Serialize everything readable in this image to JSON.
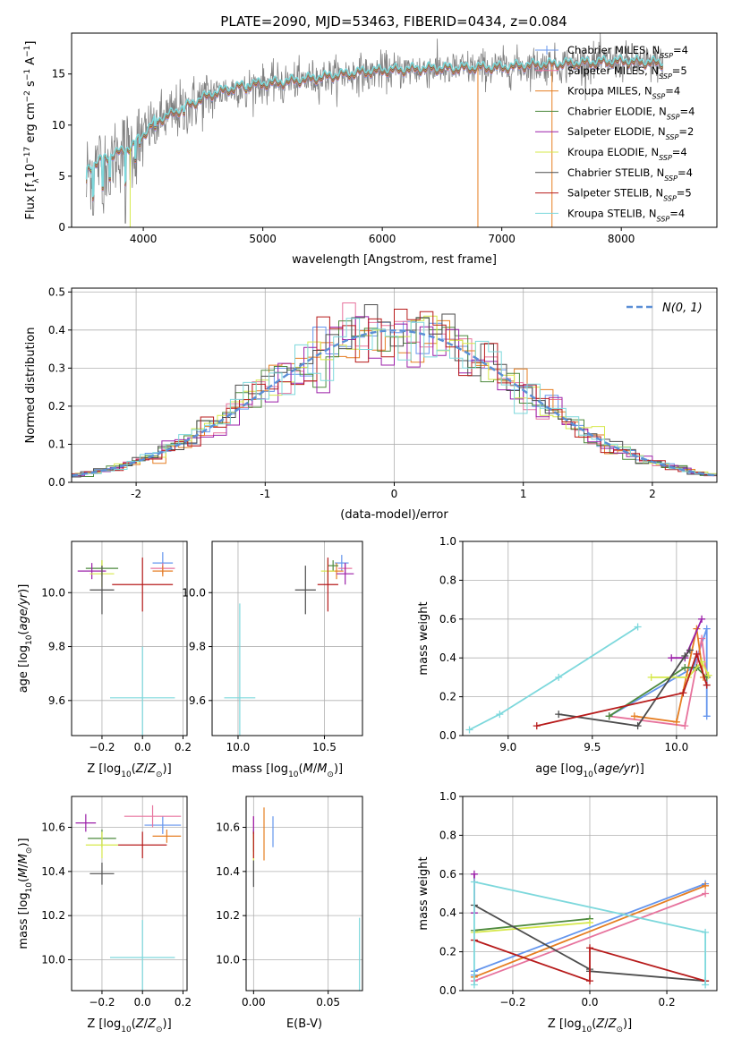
{
  "title": "PLATE=2090, MJD=53463, FIBERID=0434, z=0.084",
  "colors": {
    "Chabrier MILES": "#6495ed",
    "Salpeter MILES": "#e7739d",
    "Kroupa MILES": "#e67e22",
    "Chabrier ELODIE": "#4e8a3e",
    "Salpeter ELODIE": "#9b1fa8",
    "Kroupa ELODIE": "#d6e84a",
    "Chabrier STELIB": "#4d4d4d",
    "Salpeter STELIB": "#b71b1b",
    "Kroupa STELIB": "#7dd8dc",
    "spectrum": "#808080",
    "normal": "#5b8fd6"
  },
  "chart_data": [
    {
      "id": "spectrum",
      "type": "line",
      "xlabel": "wavelength [Angstrom, rest frame]",
      "ylabel": "Flux [f_λ 10^-17 erg cm^-2 s^-1 A^-1]",
      "ylabel_parts": [
        "Flux [f",
        "λ",
        "10",
        "−17",
        " erg cm",
        "−2",
        " s",
        "−1",
        " A",
        "−1",
        "]"
      ],
      "xlim": [
        3400,
        8800
      ],
      "ylim": [
        0,
        19
      ],
      "xticks": [
        4000,
        5000,
        6000,
        7000,
        8000
      ],
      "yticks": [
        0,
        5,
        10,
        15
      ],
      "grid": false,
      "legend_placement": "right",
      "legend": [
        {
          "name": "Chabrier MILES",
          "n": "4"
        },
        {
          "name": "Salpeter MILES",
          "n": "5"
        },
        {
          "name": "Kroupa MILES",
          "n": "4"
        },
        {
          "name": "Chabrier ELODIE",
          "n": "4"
        },
        {
          "name": "Salpeter ELODIE",
          "n": "2"
        },
        {
          "name": "Kroupa ELODIE",
          "n": "4"
        },
        {
          "name": "Chabrier STELIB",
          "n": "4"
        },
        {
          "name": "Salpeter STELIB",
          "n": "5"
        },
        {
          "name": "Kroupa STELIB",
          "n": "4"
        }
      ],
      "continuum": [
        [
          3520,
          5.5
        ],
        [
          3600,
          6.2
        ],
        [
          3700,
          6.8
        ],
        [
          3800,
          7.3
        ],
        [
          3900,
          7.8
        ],
        [
          4000,
          9.0
        ],
        [
          4100,
          10.3
        ],
        [
          4200,
          10.8
        ],
        [
          4300,
          11.4
        ],
        [
          4400,
          12.0
        ],
        [
          4500,
          12.6
        ],
        [
          4600,
          13.1
        ],
        [
          4700,
          13.4
        ],
        [
          4800,
          13.7
        ],
        [
          4900,
          13.9
        ],
        [
          5000,
          14.0
        ],
        [
          5200,
          14.2
        ],
        [
          5400,
          14.5
        ],
        [
          5600,
          14.8
        ],
        [
          5800,
          15.1
        ],
        [
          6000,
          15.3
        ],
        [
          6200,
          15.4
        ],
        [
          6400,
          15.5
        ],
        [
          6600,
          15.5
        ],
        [
          6800,
          15.6
        ],
        [
          7000,
          15.6
        ],
        [
          7200,
          15.8
        ],
        [
          7400,
          15.9
        ],
        [
          7600,
          16.0
        ],
        [
          7800,
          16.1
        ],
        [
          8000,
          16.2
        ],
        [
          8200,
          16.1
        ],
        [
          8350,
          16.0
        ]
      ],
      "dips": [
        [
          3520,
          3.0
        ],
        [
          3580,
          1.2
        ],
        [
          3660,
          2.3
        ],
        [
          3720,
          3.2
        ],
        [
          3850,
          0.4
        ],
        [
          3935,
          5.0
        ],
        [
          3970,
          6.5
        ],
        [
          4100,
          8.2
        ],
        [
          4340,
          9.6
        ],
        [
          4860,
          11.8
        ],
        [
          5170,
          12.2
        ],
        [
          5270,
          12.8
        ],
        [
          5890,
          13.6
        ],
        [
          6560,
          14.3
        ]
      ],
      "drops": [
        {
          "series": "Kroupa ELODIE",
          "x": 3890
        },
        {
          "series": "Kroupa MILES",
          "x": 6800
        },
        {
          "series": "Kroupa MILES",
          "x": 7420
        }
      ]
    },
    {
      "id": "residuals",
      "type": "histogram",
      "xlabel": "(data-model)/error",
      "ylabel": "Normed distribution",
      "xlim": [
        -2.5,
        2.5
      ],
      "ylim": [
        0,
        0.51
      ],
      "xticks": [
        -2,
        -1,
        0,
        1,
        2
      ],
      "yticks": [
        0.0,
        0.1,
        0.2,
        0.3,
        0.4,
        0.5
      ],
      "grid": true,
      "bin_width": 0.1,
      "normal_label": "N(0, 1)",
      "notable_bins": [
        {
          "series": "Salpeter ELODIE",
          "x": -0.2,
          "value": 0.48
        },
        {
          "series": "Salpeter MILES",
          "x": -0.4,
          "value": 0.46
        },
        {
          "series": "Kroupa ELODIE",
          "x": 0.75,
          "value": 0.43
        },
        {
          "series": "Kroupa STELIB",
          "x": -0.05,
          "value": 0.47
        }
      ]
    },
    {
      "id": "age-vs-Z",
      "type": "scatter",
      "xlabel": "Z [log10(Z/Zsun)]",
      "ylabel": "age [log10(age/yr)]",
      "xlim": [
        -0.35,
        0.22
      ],
      "ylim": [
        9.47,
        10.19
      ],
      "xticks": [
        -0.2,
        0.0,
        0.2
      ],
      "xticklabels": [
        "−0.2",
        "0.0",
        "0.2"
      ],
      "yticks": [
        9.6,
        9.8,
        10.0
      ],
      "grid": true,
      "points": [
        {
          "series": "Chabrier MILES",
          "x": 0.1,
          "y": 10.11,
          "xerr": 0.05,
          "yerr": 0.04
        },
        {
          "series": "Salpeter MILES",
          "x": 0.1,
          "y": 10.09,
          "xerr": 0.06,
          "yerr": 0.02
        },
        {
          "series": "Kroupa MILES",
          "x": 0.1,
          "y": 10.08,
          "xerr": 0.05,
          "yerr": 0.02
        },
        {
          "series": "Chabrier ELODIE",
          "x": -0.2,
          "y": 10.09,
          "xerr": 0.08,
          "yerr": 0.03
        },
        {
          "series": "Salpeter ELODIE",
          "x": -0.25,
          "y": 10.08,
          "xerr": 0.07,
          "yerr": 0.03
        },
        {
          "series": "Kroupa ELODIE",
          "x": -0.2,
          "y": 10.07,
          "xerr": 0.06,
          "yerr": 0.05
        },
        {
          "series": "Chabrier STELIB",
          "x": -0.2,
          "y": 10.01,
          "xerr": 0.06,
          "yerr": 0.09
        },
        {
          "series": "Salpeter STELIB",
          "x": 0.0,
          "y": 10.03,
          "xerr": 0.15,
          "yerr": 0.1
        },
        {
          "series": "Kroupa STELIB",
          "x": 0.0,
          "y": 9.61,
          "xerr": 0.16,
          "yerr": 0.19
        }
      ]
    },
    {
      "id": "age-vs-mass",
      "type": "scatter",
      "xlabel": "mass [log10(M/Msun)]",
      "ylabel": "",
      "xlim": [
        9.85,
        10.72
      ],
      "ylim": [
        9.47,
        10.19
      ],
      "xticks": [
        10.0,
        10.5
      ],
      "xticklabels": [
        "10.0",
        "10.5"
      ],
      "yticks": [
        9.6,
        9.8,
        10.0
      ],
      "grid": true,
      "points": [
        {
          "series": "Chabrier MILES",
          "x": 10.6,
          "y": 10.11,
          "xerr": 0.04,
          "yerr": 0.03
        },
        {
          "series": "Salpeter MILES",
          "x": 10.62,
          "y": 10.09,
          "xerr": 0.04,
          "yerr": 0.02
        },
        {
          "series": "Kroupa MILES",
          "x": 10.57,
          "y": 10.08,
          "xerr": 0.04,
          "yerr": 0.03
        },
        {
          "series": "Chabrier ELODIE",
          "x": 10.55,
          "y": 10.1,
          "xerr": 0.03,
          "yerr": 0.02
        },
        {
          "series": "Salpeter ELODIE",
          "x": 10.62,
          "y": 10.07,
          "xerr": 0.05,
          "yerr": 0.04
        },
        {
          "series": "Kroupa ELODIE",
          "x": 10.52,
          "y": 10.08,
          "xerr": 0.04,
          "yerr": 0.04
        },
        {
          "series": "Chabrier STELIB",
          "x": 10.39,
          "y": 10.01,
          "xerr": 0.06,
          "yerr": 0.09
        },
        {
          "series": "Salpeter STELIB",
          "x": 10.52,
          "y": 10.03,
          "xerr": 0.06,
          "yerr": 0.1
        },
        {
          "series": "Kroupa STELIB",
          "x": 10.01,
          "y": 9.61,
          "xerr": 0.09,
          "yerr": 0.35
        }
      ]
    },
    {
      "id": "weight-vs-age",
      "type": "line",
      "xlabel": "age [log10(age/yr)]",
      "ylabel": "mass weight",
      "xlim": [
        8.73,
        10.24
      ],
      "ylim": [
        0,
        1
      ],
      "xticks": [
        9.0,
        9.5,
        10.0
      ],
      "xticklabels": [
        "9.0",
        "9.5",
        "10.0"
      ],
      "yticks": [
        0.0,
        0.2,
        0.4,
        0.6,
        0.8,
        1.0
      ],
      "grid": true,
      "series": [
        {
          "name": "Chabrier MILES",
          "x": [
            9.6,
            10.1,
            10.18,
            10.18
          ],
          "y": [
            0.1,
            0.35,
            0.55,
            0.1
          ]
        },
        {
          "name": "Salpeter MILES",
          "x": [
            9.6,
            10.05,
            10.15,
            10.18
          ],
          "y": [
            0.1,
            0.05,
            0.5,
            0.3
          ]
        },
        {
          "name": "Kroupa MILES",
          "x": [
            9.75,
            10.0,
            10.12,
            10.16
          ],
          "y": [
            0.1,
            0.07,
            0.55,
            0.3
          ]
        },
        {
          "name": "Chabrier ELODIE",
          "x": [
            9.6,
            10.05,
            10.12,
            10.18
          ],
          "y": [
            0.1,
            0.35,
            0.35,
            0.3
          ]
        },
        {
          "name": "Salpeter ELODIE",
          "x": [
            9.97,
            10.05,
            10.15
          ],
          "y": [
            0.4,
            0.4,
            0.6
          ]
        },
        {
          "name": "Kroupa ELODIE",
          "x": [
            9.85,
            10.07,
            10.15,
            10.19
          ],
          "y": [
            0.3,
            0.3,
            0.38,
            0.31
          ]
        },
        {
          "name": "Chabrier STELIB",
          "x": [
            9.3,
            9.77,
            10.05,
            10.08
          ],
          "y": [
            0.11,
            0.05,
            0.41,
            0.44
          ]
        },
        {
          "name": "Salpeter STELIB",
          "x": [
            9.17,
            10.04,
            10.12,
            10.18
          ],
          "y": [
            0.05,
            0.22,
            0.42,
            0.26
          ]
        },
        {
          "name": "Kroupa STELIB",
          "x": [
            8.77,
            8.95,
            9.3,
            9.77
          ],
          "y": [
            0.03,
            0.11,
            0.3,
            0.56
          ]
        }
      ]
    },
    {
      "id": "mass-vs-Z",
      "type": "scatter",
      "xlabel": "Z [log10(Z/Zsun)]",
      "ylabel": "mass [log10(M/Msun)]",
      "xlim": [
        -0.35,
        0.22
      ],
      "ylim": [
        9.86,
        10.74
      ],
      "xticks": [
        -0.2,
        0.0,
        0.2
      ],
      "xticklabels": [
        "−0.2",
        "0.0",
        "0.2"
      ],
      "yticks": [
        10.0,
        10.2,
        10.4,
        10.6
      ],
      "grid": true,
      "points": [
        {
          "series": "Chabrier MILES",
          "x": 0.1,
          "y": 10.61,
          "xerr": 0.09,
          "yerr": 0.04
        },
        {
          "series": "Salpeter MILES",
          "x": 0.05,
          "y": 10.65,
          "xerr": 0.14,
          "yerr": 0.05
        },
        {
          "series": "Kroupa MILES",
          "x": 0.12,
          "y": 10.56,
          "xerr": 0.07,
          "yerr": 0.03
        },
        {
          "series": "Chabrier ELODIE",
          "x": -0.2,
          "y": 10.55,
          "xerr": 0.07,
          "yerr": 0.04
        },
        {
          "series": "Salpeter ELODIE",
          "x": -0.28,
          "y": 10.62,
          "xerr": 0.05,
          "yerr": 0.04
        },
        {
          "series": "Kroupa ELODIE",
          "x": -0.2,
          "y": 10.52,
          "xerr": 0.08,
          "yerr": 0.06
        },
        {
          "series": "Chabrier STELIB",
          "x": -0.2,
          "y": 10.39,
          "xerr": 0.06,
          "yerr": 0.05
        },
        {
          "series": "Salpeter STELIB",
          "x": 0.0,
          "y": 10.52,
          "xerr": 0.12,
          "yerr": 0.06
        },
        {
          "series": "Kroupa STELIB",
          "x": 0.0,
          "y": 10.01,
          "xerr": 0.16,
          "yerr": 0.17
        }
      ]
    },
    {
      "id": "mass-vs-EBV",
      "type": "scatter",
      "xlabel": "E(B-V)",
      "ylabel": "",
      "xlim": [
        -0.005,
        0.073
      ],
      "ylim": [
        9.86,
        10.74
      ],
      "xticks": [
        0.0,
        0.05
      ],
      "xticklabels": [
        "0.00",
        "0.05"
      ],
      "yticks": [
        10.0,
        10.2,
        10.4,
        10.6
      ],
      "grid": true,
      "points": [
        {
          "series": "Chabrier MILES",
          "x": 0.013,
          "y": 10.58,
          "xerr": 0,
          "yerr": 0.07
        },
        {
          "series": "Salpeter MILES",
          "x": 0.0,
          "y": 10.6,
          "xerr": 0,
          "yerr": 0.05
        },
        {
          "series": "Kroupa MILES",
          "x": 0.007,
          "y": 10.57,
          "xerr": 0,
          "yerr": 0.12
        },
        {
          "series": "Chabrier ELODIE",
          "x": 0.0,
          "y": 10.54,
          "xerr": 0,
          "yerr": 0.05
        },
        {
          "series": "Salpeter ELODIE",
          "x": 0.0,
          "y": 10.61,
          "xerr": 0,
          "yerr": 0.04
        },
        {
          "series": "Kroupa ELODIE",
          "x": 0.0,
          "y": 10.51,
          "xerr": 0,
          "yerr": 0.06
        },
        {
          "series": "Chabrier STELIB",
          "x": 0.0,
          "y": 10.39,
          "xerr": 0,
          "yerr": 0.06
        },
        {
          "series": "Salpeter STELIB",
          "x": 0.0,
          "y": 10.52,
          "xerr": 0,
          "yerr": 0.06
        },
        {
          "series": "Kroupa STELIB",
          "x": 0.071,
          "y": 10.02,
          "xerr": 0,
          "yerr": 0.17
        }
      ]
    },
    {
      "id": "weight-vs-Z",
      "type": "line",
      "xlabel": "Z [log10(Z/Zsun)]",
      "ylabel": "mass weight",
      "xlim": [
        -0.33,
        0.33
      ],
      "ylim": [
        0,
        1
      ],
      "xticks": [
        -0.2,
        0.0,
        0.2
      ],
      "xticklabels": [
        "−0.2",
        "0.0",
        "0.2"
      ],
      "yticks": [
        0.0,
        0.2,
        0.4,
        0.6,
        0.8,
        1.0
      ],
      "grid": true,
      "series": [
        {
          "name": "Chabrier MILES",
          "x": [
            -0.3,
            -0.3,
            0.3
          ],
          "y": [
            0.08,
            0.1,
            0.55
          ]
        },
        {
          "name": "Salpeter MILES",
          "x": [
            -0.3,
            0.3
          ],
          "y": [
            0.05,
            0.5
          ]
        },
        {
          "name": "Kroupa MILES",
          "x": [
            -0.3,
            0.3
          ],
          "y": [
            0.07,
            0.54
          ]
        },
        {
          "name": "Chabrier ELODIE",
          "x": [
            -0.3,
            0.0
          ],
          "y": [
            0.31,
            0.37
          ]
        },
        {
          "name": "Salpeter ELODIE",
          "x": [
            -0.3,
            -0.3
          ],
          "y": [
            0.4,
            0.6
          ]
        },
        {
          "name": "Kroupa ELODIE",
          "x": [
            -0.3,
            0.0
          ],
          "y": [
            0.3,
            0.35
          ]
        },
        {
          "name": "Chabrier STELIB",
          "x": [
            -0.3,
            0.0,
            0.0,
            0.3
          ],
          "y": [
            0.44,
            0.11,
            0.1,
            0.05
          ]
        },
        {
          "name": "Salpeter STELIB",
          "x": [
            -0.3,
            0.0,
            0.0,
            0.3
          ],
          "y": [
            0.26,
            0.05,
            0.22,
            0.05
          ]
        },
        {
          "name": "Kroupa STELIB",
          "x": [
            -0.3,
            -0.3,
            0.3,
            0.3
          ],
          "y": [
            0.03,
            0.56,
            0.3,
            0.03
          ]
        }
      ]
    }
  ]
}
